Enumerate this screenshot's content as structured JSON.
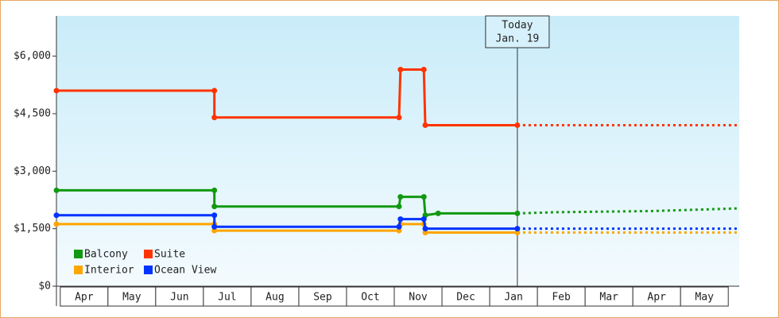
{
  "chart_data": {
    "type": "line",
    "xlim": [
      -0.08,
      14.23
    ],
    "xticks": [
      {
        "value": 0.5,
        "label": "Apr"
      },
      {
        "value": 1.5,
        "label": "May"
      },
      {
        "value": 2.5,
        "label": "Jun"
      },
      {
        "value": 3.5,
        "label": "Jul"
      },
      {
        "value": 4.5,
        "label": "Aug"
      },
      {
        "value": 5.5,
        "label": "Sep"
      },
      {
        "value": 6.5,
        "label": "Oct"
      },
      {
        "value": 7.5,
        "label": "Nov"
      },
      {
        "value": 8.5,
        "label": "Dec"
      },
      {
        "value": 9.5,
        "label": "Jan"
      },
      {
        "value": 10.5,
        "label": "Feb"
      },
      {
        "value": 11.5,
        "label": "Mar"
      },
      {
        "value": 12.5,
        "label": "Apr"
      },
      {
        "value": 13.5,
        "label": "May"
      }
    ],
    "ylim": [
      0,
      7050
    ],
    "yticks": [
      {
        "value": 0,
        "label": "$0"
      },
      {
        "value": 1500,
        "label": "$1,500"
      },
      {
        "value": 3000,
        "label": "$3,000"
      },
      {
        "value": 4500,
        "label": "$4,500"
      },
      {
        "value": 6000,
        "label": "$6,000"
      }
    ],
    "legend": "bottom-left",
    "today": {
      "lines": [
        "Today",
        "Jan. 19"
      ],
      "x": 9.58
    },
    "series": [
      {
        "name": "Balcony",
        "color": "#119911",
        "x": [
          -0.08,
          3.23,
          3.23,
          7.1,
          7.13,
          7.62,
          7.65,
          7.92,
          9.58
        ],
        "values": [
          2500,
          2500,
          2080,
          2080,
          2330,
          2330,
          1850,
          1900,
          1900
        ],
        "forecast": {
          "x": [
            9.58,
            10.4,
            12.4,
            14.23
          ],
          "values": [
            1900,
            1930,
            1960,
            2030
          ]
        }
      },
      {
        "name": "Suite",
        "color": "#ff3300",
        "x": [
          -0.08,
          3.23,
          3.23,
          7.1,
          7.13,
          7.62,
          7.65,
          9.58
        ],
        "values": [
          5100,
          5100,
          4400,
          4400,
          5650,
          5650,
          4200,
          4200
        ],
        "forecast": {
          "x": [
            9.58,
            14.23
          ],
          "values": [
            4200,
            4200
          ]
        }
      },
      {
        "name": "Interior",
        "color": "#ffa500",
        "x": [
          -0.08,
          3.23,
          3.23,
          7.1,
          7.13,
          7.62,
          7.65,
          9.58
        ],
        "values": [
          1620,
          1620,
          1450,
          1450,
          1620,
          1620,
          1400,
          1400
        ],
        "forecast": {
          "x": [
            9.58,
            14.23
          ],
          "values": [
            1400,
            1400
          ]
        }
      },
      {
        "name": "Ocean View",
        "color": "#0033ff",
        "x": [
          -0.08,
          3.23,
          3.23,
          7.1,
          7.13,
          7.62,
          7.65,
          9.58
        ],
        "values": [
          1850,
          1850,
          1550,
          1550,
          1750,
          1750,
          1500,
          1500
        ],
        "forecast": {
          "x": [
            9.58,
            14.23
          ],
          "values": [
            1500,
            1500
          ]
        }
      }
    ]
  }
}
